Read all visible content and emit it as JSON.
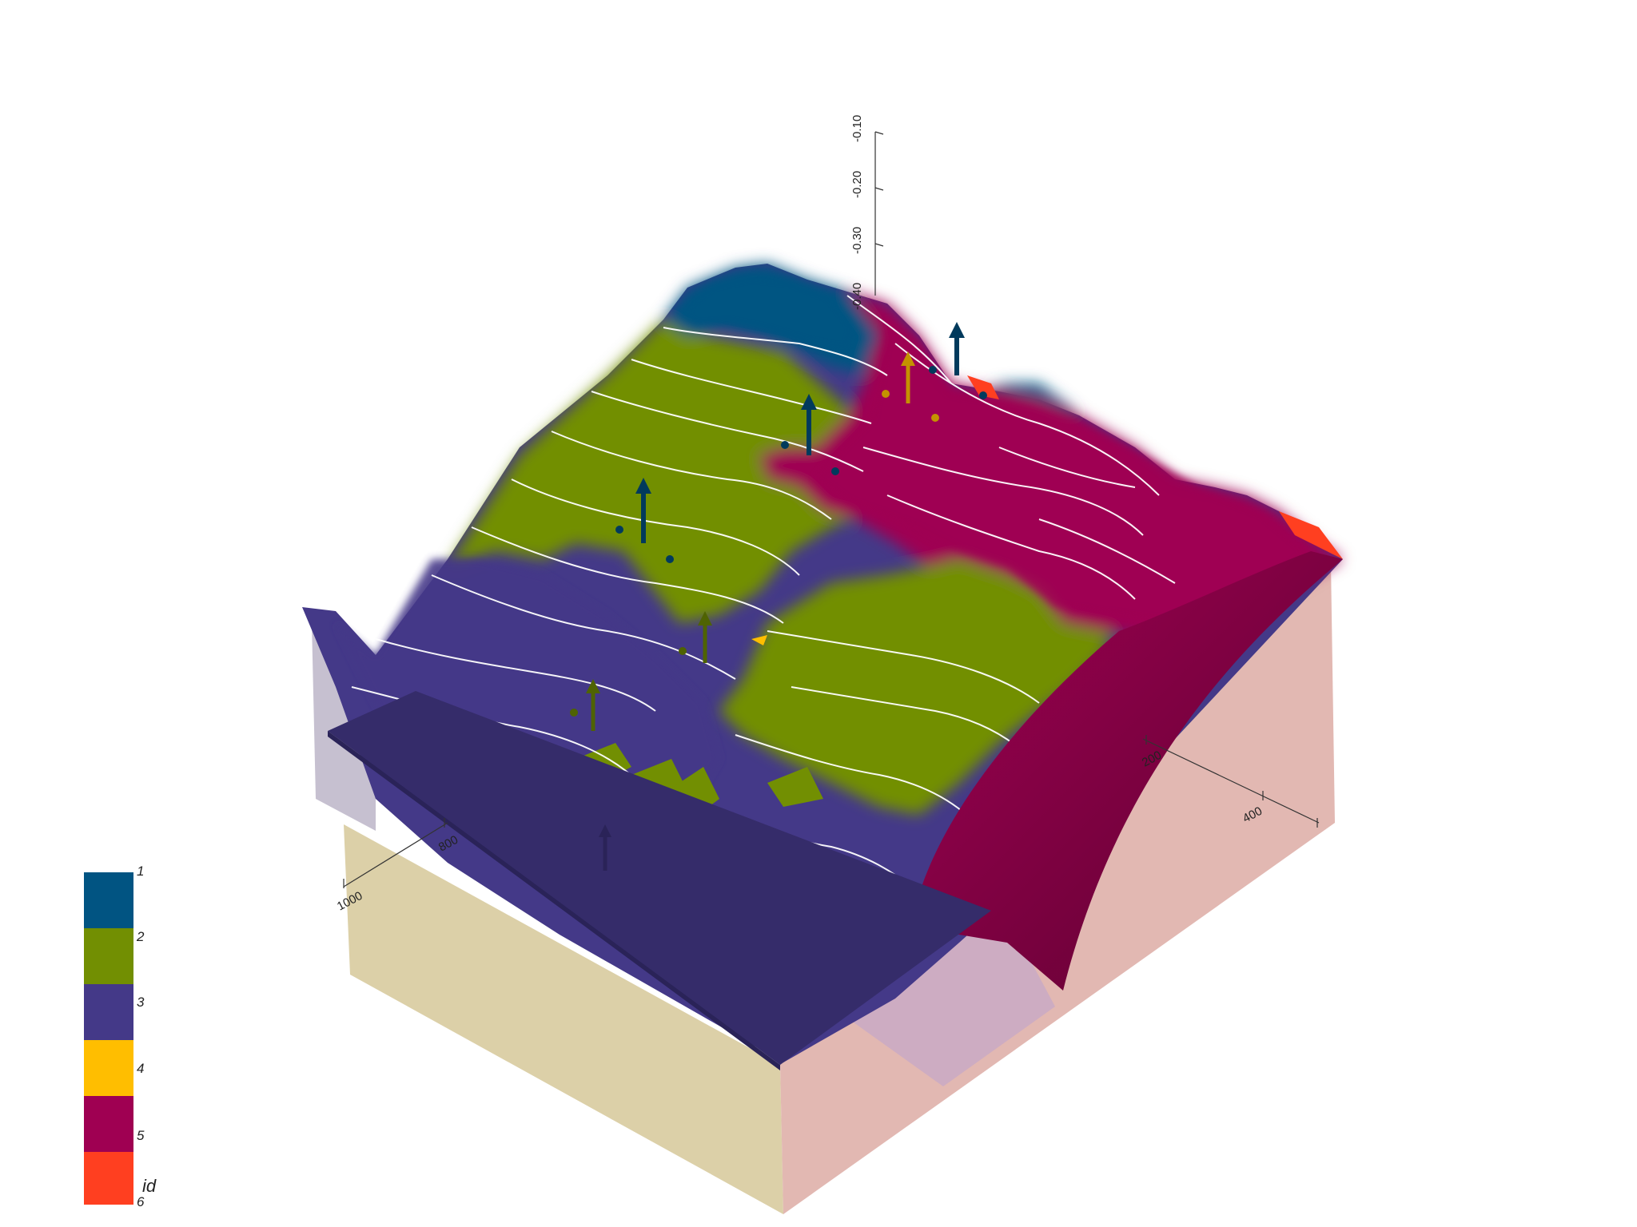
{
  "scene": {
    "colors": {
      "unit_1": "#015482",
      "unit_2": "#728f02",
      "unit_3": "#443988",
      "unit_4": "#ffbe00",
      "unit_5": "#9f0052",
      "unit_6": "#ff3f20",
      "contour": "#ffffff",
      "box_tan": "#dcd0a8",
      "box_pink": "#e0b4ae",
      "background": "#ffffff"
    }
  },
  "axes": {
    "z_ticks": [
      "-0.10",
      "-0.20",
      "-0.30",
      "-0.40"
    ],
    "x_ticks": [
      "1000",
      "800"
    ],
    "y_ticks": [
      "200",
      "400"
    ]
  },
  "legend": {
    "title": "id",
    "entries": [
      {
        "label": "1",
        "color": "#015482"
      },
      {
        "label": "2",
        "color": "#728f02"
      },
      {
        "label": "3",
        "color": "#443988"
      },
      {
        "label": "4",
        "color": "#ffbe00"
      },
      {
        "label": "5",
        "color": "#9f0052"
      },
      {
        "label": "6",
        "color": "#ff3f20"
      }
    ]
  }
}
